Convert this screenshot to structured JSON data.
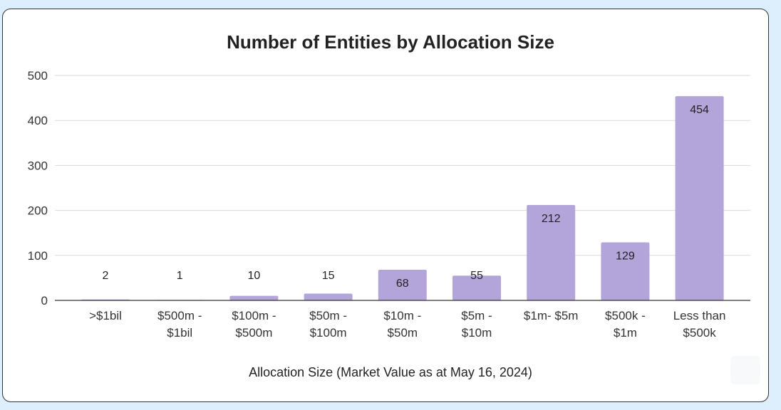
{
  "chart_data": {
    "type": "bar",
    "title": "Number of Entities by Allocation Size",
    "xlabel": "Allocation Size (Market Value as at May 16, 2024)",
    "ylabel": "",
    "categories": [
      [
        ">$1bil"
      ],
      [
        "$500m -",
        "$1bil"
      ],
      [
        "$100m -",
        "$500m"
      ],
      [
        "$50m -",
        "$100m"
      ],
      [
        "$10m -",
        "$50m"
      ],
      [
        "$5m -",
        "$10m"
      ],
      [
        "$1m- $5m"
      ],
      [
        "$500k -",
        "$1m"
      ],
      [
        "Less than",
        "$500k"
      ]
    ],
    "values": [
      2,
      1,
      10,
      15,
      68,
      55,
      212,
      129,
      454
    ],
    "data_labels": [
      "2",
      "1",
      "10",
      "15",
      "68",
      "55",
      "212",
      "129",
      "454"
    ],
    "yticks": [
      "0",
      "100",
      "200",
      "300",
      "400",
      "500"
    ],
    "ylim": [
      0,
      500
    ],
    "grid": true,
    "bar_color": "#b3a4da",
    "grid_color": "#d9d9d9",
    "axis_color": "#333333"
  }
}
